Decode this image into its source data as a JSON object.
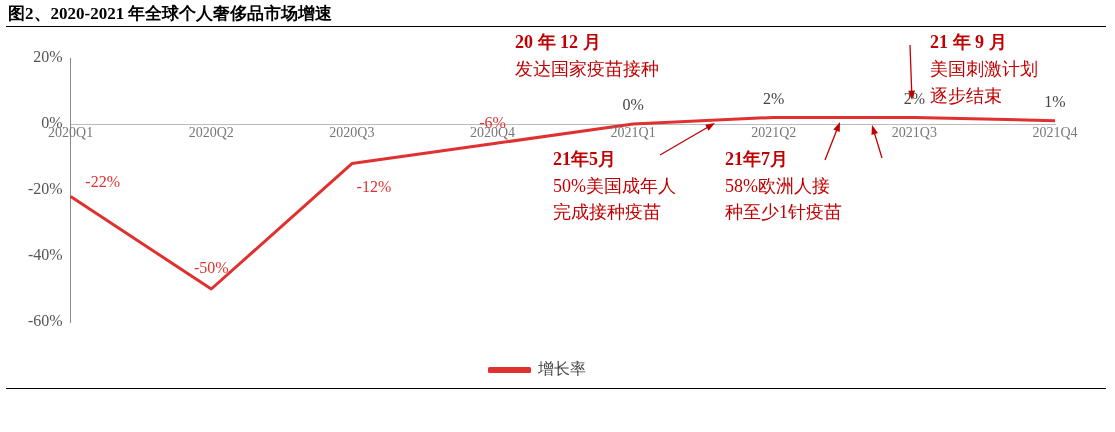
{
  "chart_data": {
    "type": "line",
    "title": "图2、2020-2021 年全球个人奢侈品市场增速",
    "categories": [
      "2020Q1",
      "2020Q2",
      "2020Q3",
      "2020Q4",
      "2021Q1",
      "2021Q2",
      "2021Q3",
      "2021Q4"
    ],
    "series": [
      {
        "name": "增长率",
        "color": "#e03131",
        "values": [
          -22,
          -50,
          -12,
          -6,
          0,
          2,
          2,
          1
        ]
      }
    ],
    "ylim": [
      -60,
      20
    ],
    "yticks": [
      {
        "value": -60,
        "label": "-60%"
      },
      {
        "value": -40,
        "label": "-40%"
      },
      {
        "value": -20,
        "label": "-20%"
      },
      {
        "value": 0,
        "label": "0%"
      },
      {
        "value": 20,
        "label": "20%"
      }
    ],
    "value_labels": [
      "-22%",
      "-50%",
      "-12%",
      "-6%",
      "0%",
      "2%",
      "2%",
      "1%"
    ],
    "grid": false,
    "legend": "bottom",
    "marker": "none",
    "line_style": "solid",
    "annotations": [
      "20 年 12 月",
      "发达国家疫苗接种",
      "21年5月",
      "50%美国成年人",
      "完成接种疫苗",
      "21年7月",
      "58%欧洲人接",
      "种至少1针疫苗",
      "21 年 9 月",
      "美国刺激计划",
      "逐步结束"
    ]
  }
}
